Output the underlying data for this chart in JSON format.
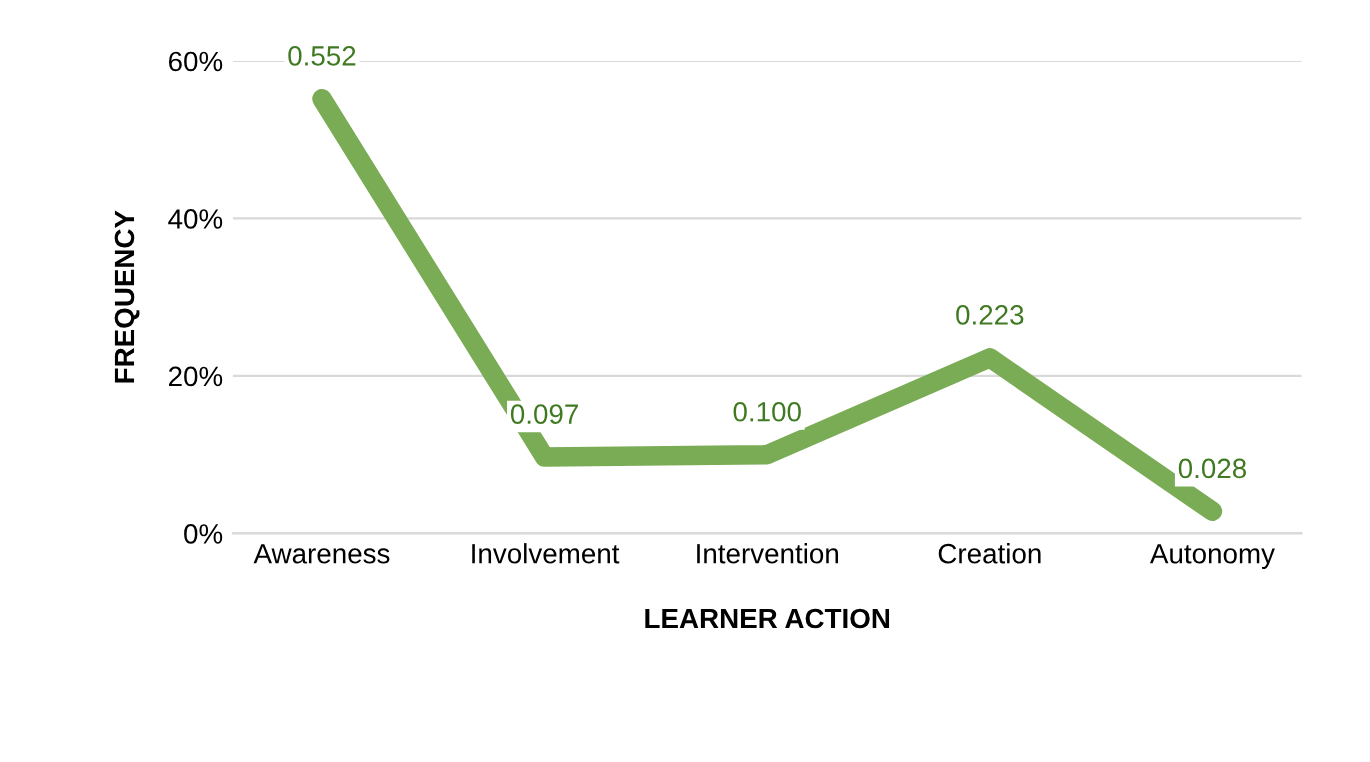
{
  "chart_data": {
    "type": "line",
    "xlabel": "LEARNER ACTION",
    "ylabel": "FREQUENCY",
    "categories": [
      "Awareness",
      "Involvement",
      "Intervention",
      "Creation",
      "Autonomy"
    ],
    "series": [
      {
        "color": "#7aab55",
        "values": [
          0.552,
          0.097,
          0.1,
          0.223,
          0.028
        ],
        "value_labels": [
          "0.552",
          "0.097",
          "0.100",
          "0.223",
          "0.028"
        ]
      }
    ],
    "ylim": [
      0,
      0.6
    ],
    "yticks": [
      {
        "value": 0,
        "label": "0%"
      },
      {
        "value": 0.2,
        "label": "20%"
      },
      {
        "value": 0.4,
        "label": "40%"
      },
      {
        "value": 0.6,
        "label": "60%"
      }
    ],
    "grid": "y",
    "marker": "none",
    "line_style": "solid"
  }
}
